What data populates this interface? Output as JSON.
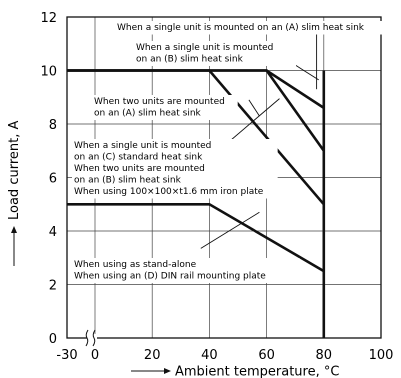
{
  "chart_data": {
    "type": "line",
    "xlabel": "Ambient temperature, °C",
    "ylabel": "Load current, A",
    "xlim": [
      -30,
      100
    ],
    "ylim": [
      0,
      12
    ],
    "x_ticks": [
      "-30",
      "0",
      "20",
      "40",
      "60",
      "80",
      "100"
    ],
    "x_tick_values": [
      -30,
      0,
      20,
      40,
      60,
      80,
      100
    ],
    "y_ticks": [
      "0",
      "2",
      "4",
      "6",
      "8",
      "10",
      "12"
    ],
    "y_tick_values": [
      0,
      2,
      4,
      6,
      8,
      10,
      12
    ],
    "x_axis_break": true,
    "grid": true,
    "series": [
      {
        "points": [
          [
            -30,
            10
          ],
          [
            60,
            10
          ],
          [
            80,
            8.6
          ]
        ]
      },
      {
        "points": [
          [
            -30,
            10
          ],
          [
            60,
            10
          ],
          [
            80,
            7
          ]
        ]
      },
      {
        "points": [
          [
            -30,
            10
          ],
          [
            40,
            10
          ],
          [
            80,
            5
          ]
        ]
      },
      {
        "points": [
          [
            -30,
            5
          ],
          [
            40,
            5
          ],
          [
            80,
            2.5
          ]
        ]
      },
      {
        "points": [
          [
            80,
            0
          ],
          [
            80,
            10
          ]
        ]
      }
    ],
    "annotations": [
      {
        "lines": [
          "When a single unit is mounted on an (A) slim heat sink"
        ]
      },
      {
        "lines": [
          "When a single unit is mounted",
          "on an (B) slim heat sink"
        ]
      },
      {
        "lines": [
          "When two units are mounted",
          "on an (A) slim heat sink"
        ]
      },
      {
        "lines": [
          "When a single unit is mounted",
          "on an (C) standard heat sink",
          "When two units are mounted",
          "on an (B) slim heat sink",
          "When using 100×100×t1.6 mm iron plate"
        ]
      },
      {
        "lines": [
          "When using as stand-alone",
          "When using an (D) DIN rail mounting plate"
        ]
      }
    ]
  }
}
